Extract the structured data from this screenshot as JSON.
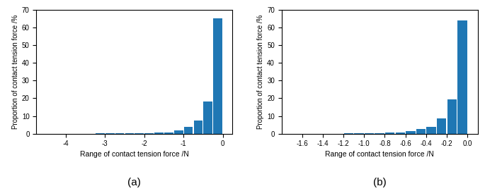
{
  "chart_data": [
    {
      "type": "histogram",
      "title": "(a)",
      "xlabel": "Range of contact tension force /N",
      "ylabel": "Proportion of contact tension force /%",
      "bins": [
        -4.5,
        -4.25,
        -4.0,
        -3.75,
        -3.5,
        -3.25,
        -3.0,
        -2.75,
        -2.5,
        -2.25,
        -2.0,
        -1.75,
        -1.5,
        -1.25,
        -1.0,
        -0.75,
        -0.5,
        -0.25,
        0.0
      ],
      "values": [
        0.0,
        0.0,
        0.0,
        0.05,
        0.05,
        0.1,
        0.1,
        0.15,
        0.15,
        0.2,
        0.3,
        0.5,
        0.8,
        1.8,
        4.0,
        7.5,
        18.0,
        65.0
      ],
      "xlim": [
        -4.75,
        0.25
      ],
      "ylim": [
        0,
        70
      ],
      "xticks": [
        -4,
        -3,
        -2,
        -1,
        0
      ],
      "yticks": [
        0,
        10,
        20,
        30,
        40,
        50,
        60,
        70
      ],
      "grid": false
    },
    {
      "type": "histogram",
      "title": "(b)",
      "xlabel": "Range of contact tension force /N",
      "ylabel": "Proportion of contact tension force /%",
      "bins": [
        -1.8,
        -1.7,
        -1.6,
        -1.5,
        -1.4,
        -1.3,
        -1.2,
        -1.1,
        -1.0,
        -0.9,
        -0.8,
        -0.7,
        -0.6,
        -0.5,
        -0.4,
        -0.3,
        -0.2,
        -0.1,
        0.0
      ],
      "values": [
        0.0,
        0.0,
        0.0,
        0.0,
        0.05,
        0.05,
        0.1,
        0.1,
        0.15,
        0.2,
        0.5,
        0.8,
        1.5,
        2.5,
        4.0,
        8.5,
        19.5,
        64.0
      ],
      "xlim": [
        -1.8,
        0.1
      ],
      "ylim": [
        0,
        70
      ],
      "xticks": [
        -1.6,
        -1.4,
        -1.2,
        -1.0,
        -0.8,
        -0.6,
        -0.4,
        -0.2,
        0.0
      ],
      "yticks": [
        0,
        10,
        20,
        30,
        40,
        50,
        60,
        70
      ],
      "grid": false
    }
  ]
}
